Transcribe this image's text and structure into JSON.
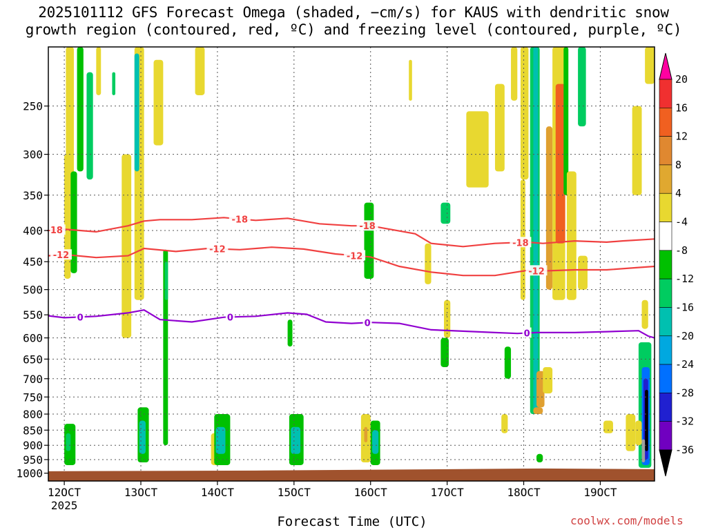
{
  "chart_data": {
    "type": "heatmap",
    "title_line1": "2025101112 GFS Forecast Omega (shaded, −cm/s) for KAUS with dendritic snow",
    "title_line2": "growth region (contoured, red, ºC) and freezing level (contoured, purple, ºC)",
    "xlabel": "Forecast Time (UTC)",
    "credit": "coolwx.com/models",
    "x_range_hours": [
      -5,
      185
    ],
    "y_range_hpa": [
      200,
      1030
    ],
    "x_ticks": [
      {
        "hour": 0,
        "label": "12OCT",
        "sub": "2025"
      },
      {
        "hour": 24,
        "label": "13OCT",
        "sub": ""
      },
      {
        "hour": 48,
        "label": "14OCT",
        "sub": ""
      },
      {
        "hour": 72,
        "label": "15OCT",
        "sub": ""
      },
      {
        "hour": 96,
        "label": "16OCT",
        "sub": ""
      },
      {
        "hour": 120,
        "label": "17OCT",
        "sub": ""
      },
      {
        "hour": 144,
        "label": "18OCT",
        "sub": ""
      },
      {
        "hour": 168,
        "label": "19OCT",
        "sub": ""
      }
    ],
    "y_ticks": [
      250,
      300,
      350,
      400,
      450,
      500,
      550,
      600,
      650,
      700,
      750,
      800,
      850,
      900,
      950,
      1000
    ],
    "colorbar": {
      "ticks": [
        "20",
        "16",
        "12",
        "8",
        "4",
        "-4",
        "-8",
        "-12",
        "-16",
        "-20",
        "-24",
        "-28",
        "-32",
        "-36"
      ],
      "colors": [
        "#ff00a0",
        "#f03030",
        "#f06020",
        "#e08830",
        "#e0a830",
        "#e8d830",
        "#ffffff",
        "#00c000",
        "#00cc60",
        "#00c0b0",
        "#00a8e0",
        "#0070ff",
        "#2020d0",
        "#7000c0",
        "#a000c8",
        "#a0a0a0",
        "#000000"
      ]
    },
    "series": [
      {
        "name": "-18 ºC isotherm",
        "color": "#f04040",
        "label": "-18",
        "hours": [
          -5,
          0,
          10,
          20,
          25,
          30,
          40,
          50,
          60,
          70,
          80,
          90,
          96,
          110,
          115,
          125,
          135,
          145,
          150,
          160,
          170,
          175,
          185
        ],
        "values": [
          400,
          398,
          402,
          393,
          386,
          384,
          384,
          381,
          385,
          382,
          390,
          393,
          393,
          405,
          420,
          425,
          420,
          418,
          420,
          416,
          418,
          416,
          413
        ],
        "label_hours": [
          -3,
          55,
          95,
          143
        ]
      },
      {
        "name": "-12 ºC isotherm",
        "color": "#f04040",
        "label": "-12",
        "hours": [
          -5,
          0,
          10,
          20,
          25,
          35,
          45,
          55,
          65,
          75,
          85,
          96,
          105,
          115,
          125,
          135,
          145,
          150,
          160,
          170,
          180,
          185
        ],
        "values": [
          440,
          438,
          443,
          440,
          428,
          433,
          428,
          430,
          426,
          429,
          437,
          442,
          458,
          468,
          474,
          474,
          465,
          466,
          464,
          464,
          460,
          458
        ],
        "label_hours": [
          -1,
          48,
          91,
          148
        ]
      },
      {
        "name": "0 ºC freezing level",
        "color": "#9000d0",
        "label": "0",
        "hours": [
          -5,
          0,
          10,
          20,
          25,
          30,
          40,
          50,
          60,
          70,
          76,
          82,
          90,
          96,
          105,
          115,
          125,
          135,
          142,
          148,
          160,
          170,
          180,
          183,
          185
        ],
        "values": [
          552,
          556,
          553,
          546,
          540,
          560,
          565,
          555,
          553,
          546,
          549,
          565,
          568,
          566,
          568,
          582,
          585,
          588,
          590,
          588,
          588,
          586,
          584,
          596,
          600
        ],
        "label_hours": [
          5,
          52,
          95,
          145
        ]
      }
    ],
    "omega_bands": [
      {
        "h0": 22,
        "h1": 25,
        "p0": 200,
        "p1": 520,
        "v": 6
      },
      {
        "h0": 0.5,
        "h1": 3,
        "p0": 200,
        "p1": 430,
        "v": 5
      },
      {
        "h0": 28,
        "h1": 31,
        "p0": 210,
        "p1": 290,
        "v": 5
      },
      {
        "h0": 10,
        "h1": 11.5,
        "p0": 200,
        "p1": 240,
        "v": 5
      },
      {
        "h0": 41,
        "h1": 44,
        "p0": 200,
        "p1": 240,
        "v": 5
      },
      {
        "h0": 140,
        "h1": 142,
        "p0": 200,
        "p1": 245,
        "v": 5
      },
      {
        "h0": 135,
        "h1": 138,
        "p0": 230,
        "p1": 320,
        "v": 5
      },
      {
        "h0": 126,
        "h1": 133,
        "p0": 255,
        "p1": 340,
        "v": 5
      },
      {
        "h0": 0,
        "h1": 2,
        "p0": 300,
        "p1": 480,
        "v": 5
      },
      {
        "h0": 18,
        "h1": 21,
        "p0": 300,
        "p1": 600,
        "v": 6
      },
      {
        "h0": 153,
        "h1": 157,
        "p0": 200,
        "p1": 520,
        "v": 6
      },
      {
        "h0": 154,
        "h1": 157,
        "p0": 230,
        "p1": 420,
        "v": 13
      },
      {
        "h0": 151,
        "h1": 153,
        "p0": 270,
        "p1": 500,
        "v": 10
      },
      {
        "h0": 143,
        "h1": 145.5,
        "p0": 200,
        "p1": 330,
        "v": 6
      },
      {
        "h0": 143,
        "h1": 144.5,
        "p0": 330,
        "p1": 520,
        "v": 5
      },
      {
        "h0": 146,
        "h1": 149,
        "p0": 200,
        "p1": 800,
        "v": -10
      },
      {
        "h0": 147,
        "h1": 148.5,
        "p0": 200,
        "p1": 800,
        "v": -14
      },
      {
        "h0": 156.5,
        "h1": 158,
        "p0": 200,
        "p1": 350,
        "v": -8
      },
      {
        "h0": 161,
        "h1": 163.5,
        "p0": 200,
        "p1": 270,
        "v": -10
      },
      {
        "h0": 157.5,
        "h1": 160.5,
        "p0": 320,
        "p1": 520,
        "v": 5
      },
      {
        "h0": 4,
        "h1": 6,
        "p0": 200,
        "p1": 320,
        "v": -6
      },
      {
        "h0": 7,
        "h1": 9,
        "p0": 220,
        "p1": 330,
        "v": -9
      },
      {
        "h0": 2,
        "h1": 4,
        "p0": 320,
        "p1": 470,
        "v": -6
      },
      {
        "h0": 22,
        "h1": 23.5,
        "p0": 205,
        "p1": 320,
        "v": -13
      },
      {
        "h0": 31,
        "h1": 32.5,
        "p0": 430,
        "p1": 900,
        "v": -8
      },
      {
        "h0": 31.5,
        "h1": 32.5,
        "p0": 450,
        "p1": 520,
        "v": -11
      },
      {
        "h0": 94,
        "h1": 97,
        "p0": 360,
        "p1": 480,
        "v": -8
      },
      {
        "h0": 70,
        "h1": 71.5,
        "p0": 560,
        "p1": 620,
        "v": -8
      },
      {
        "h0": 113,
        "h1": 115,
        "p0": 420,
        "p1": 490,
        "v": 5
      },
      {
        "h0": 119,
        "h1": 121,
        "p0": 520,
        "p1": 600,
        "v": 5
      },
      {
        "h0": 118,
        "h1": 120.5,
        "p0": 600,
        "p1": 670,
        "v": -8
      },
      {
        "h0": 118,
        "h1": 121,
        "p0": 360,
        "p1": 390,
        "v": -9
      },
      {
        "h0": 138,
        "h1": 140,
        "p0": 620,
        "p1": 700,
        "v": -8
      },
      {
        "h0": 147,
        "h1": 150,
        "p0": 780,
        "p1": 800,
        "v": 8
      },
      {
        "h0": 148,
        "h1": 150.5,
        "p0": 680,
        "p1": 780,
        "v": 10
      },
      {
        "h0": 150,
        "h1": 153,
        "p0": 670,
        "p1": 740,
        "v": 6
      },
      {
        "h0": 148,
        "h1": 150,
        "p0": 930,
        "p1": 960,
        "v": -8
      },
      {
        "h0": 178,
        "h1": 181,
        "p0": 250,
        "p1": 350,
        "v": 5
      },
      {
        "h0": 161,
        "h1": 164,
        "p0": 440,
        "p1": 500,
        "v": 5
      },
      {
        "h0": 180,
        "h1": 184,
        "p0": 610,
        "p1": 980,
        "v": -10
      },
      {
        "h0": 181,
        "h1": 183.5,
        "p0": 670,
        "p1": 970,
        "v": -20
      },
      {
        "h0": 181.5,
        "h1": 183,
        "p0": 700,
        "p1": 950,
        "v": -26
      },
      {
        "h0": 182,
        "h1": 183,
        "p0": 730,
        "p1": 920,
        "v": -40
      },
      {
        "h0": 181,
        "h1": 182,
        "p0": 880,
        "p1": 960,
        "v": -32
      },
      {
        "h0": 179,
        "h1": 181,
        "p0": 820,
        "p1": 900,
        "v": 5
      },
      {
        "h0": 182,
        "h1": 185,
        "p0": 200,
        "p1": 230,
        "v": 5
      },
      {
        "h0": 181,
        "h1": 183,
        "p0": 520,
        "p1": 580,
        "v": 5
      },
      {
        "h0": 23,
        "h1": 26.5,
        "p0": 780,
        "p1": 960,
        "v": -8
      },
      {
        "h0": 23.5,
        "h1": 25.5,
        "p0": 820,
        "p1": 930,
        "v": -12
      },
      {
        "h0": 0,
        "h1": 3.5,
        "p0": 830,
        "p1": 970,
        "v": -8
      },
      {
        "h0": 0.5,
        "h1": 2,
        "p0": 860,
        "p1": 920,
        "v": -11
      },
      {
        "h0": 46,
        "h1": 49,
        "p0": 860,
        "p1": 970,
        "v": 5
      },
      {
        "h0": 47,
        "h1": 52,
        "p0": 800,
        "p1": 970,
        "v": -8
      },
      {
        "h0": 47.5,
        "h1": 50.5,
        "p0": 840,
        "p1": 930,
        "v": -12
      },
      {
        "h0": 70.5,
        "h1": 75,
        "p0": 800,
        "p1": 970,
        "v": -8
      },
      {
        "h0": 71,
        "h1": 74,
        "p0": 840,
        "p1": 930,
        "v": -12
      },
      {
        "h0": 93,
        "h1": 96,
        "p0": 800,
        "p1": 960,
        "v": 6
      },
      {
        "h0": 94,
        "h1": 95,
        "p0": 840,
        "p1": 890,
        "v": 10
      },
      {
        "h0": 96,
        "h1": 99,
        "p0": 820,
        "p1": 970,
        "v": -8
      },
      {
        "h0": 96.5,
        "h1": 98.5,
        "p0": 850,
        "p1": 930,
        "v": -12
      },
      {
        "h0": 176,
        "h1": 179,
        "p0": 800,
        "p1": 920,
        "v": 6
      },
      {
        "h0": 169,
        "h1": 172,
        "p0": 820,
        "p1": 860,
        "v": 5
      },
      {
        "h0": 137,
        "h1": 139,
        "p0": 800,
        "p1": 860,
        "v": 5
      },
      {
        "h0": 15,
        "h1": 16,
        "p0": 220,
        "p1": 240,
        "v": -10
      },
      {
        "h0": 108,
        "h1": 109,
        "p0": 210,
        "p1": 245,
        "v": 5
      }
    ]
  }
}
